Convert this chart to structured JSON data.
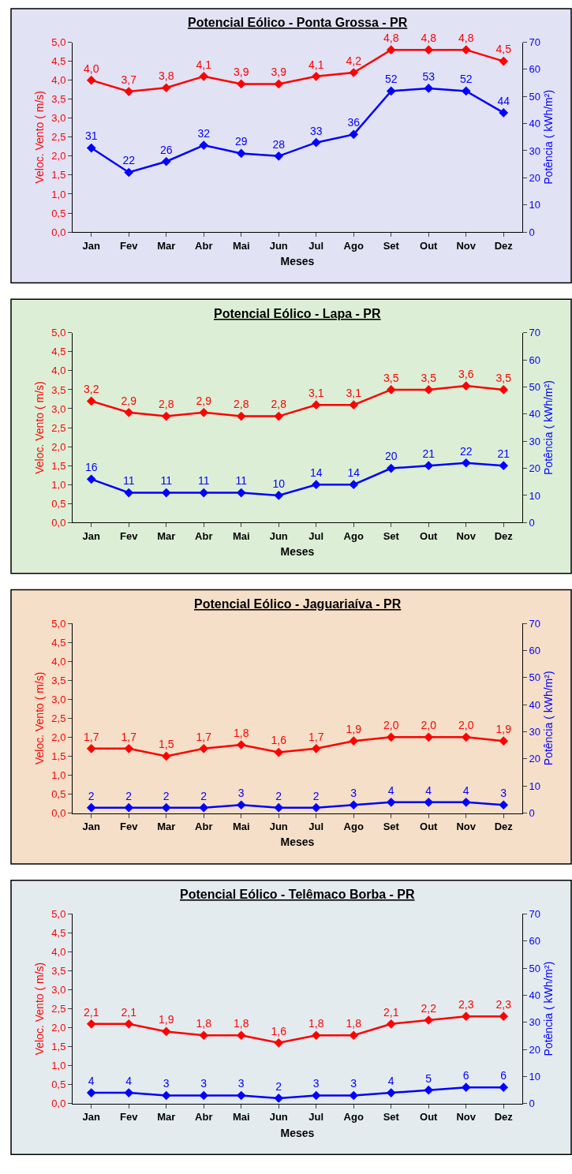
{
  "chart_data": [
    {
      "type": "line",
      "title": "Potencial Eólico - Ponta Grossa - PR",
      "xlabel": "Meses",
      "ylabel": "Veloc. Vento ( m/s)",
      "y2label": "Potência ( kWh/m²)",
      "categories": [
        "Jan",
        "Fev",
        "Mar",
        "Abr",
        "Mai",
        "Jun",
        "Jul",
        "Ago",
        "Set",
        "Out",
        "Nov",
        "Dez"
      ],
      "series": [
        {
          "color": "#ff0000",
          "values": [
            4.0,
            3.7,
            3.8,
            4.1,
            3.9,
            3.9,
            4.1,
            4.2,
            4.8,
            4.8,
            4.8,
            4.5
          ],
          "value_labels": [
            "4,0",
            "3,7",
            "3,8",
            "4,1",
            "3,9",
            "3,9",
            "4,1",
            "4,2",
            "4,8",
            "4,8",
            "4,8",
            "4,5"
          ]
        },
        {
          "color": "#0000ff",
          "axis": "y2",
          "values": [
            31,
            22,
            26,
            32,
            29,
            28,
            33,
            36,
            52,
            53,
            52,
            44
          ],
          "value_labels": [
            "31",
            "22",
            "26",
            "32",
            "29",
            "28",
            "33",
            "36",
            "52",
            "53",
            "52",
            "44"
          ]
        }
      ],
      "ylim": [
        0,
        5
      ],
      "yticks": [
        {
          "value": 0,
          "label": "0,0"
        },
        {
          "value": 0.5,
          "label": "0,5"
        },
        {
          "value": 1,
          "label": "1,0"
        },
        {
          "value": 1.5,
          "label": "1,5"
        },
        {
          "value": 2,
          "label": "2,0"
        },
        {
          "value": 2.5,
          "label": "2,5"
        },
        {
          "value": 3,
          "label": "3,0"
        },
        {
          "value": 3.5,
          "label": "3,5"
        },
        {
          "value": 4,
          "label": "4,0"
        },
        {
          "value": 4.5,
          "label": "4,5"
        },
        {
          "value": 5,
          "label": "5,0"
        }
      ],
      "y2lim": [
        0,
        70
      ],
      "y2ticks": [
        0,
        10,
        20,
        30,
        40,
        50,
        60,
        70
      ],
      "marker": "diamond",
      "line_style": "solid",
      "grid": false,
      "legend": false
    },
    {
      "type": "line",
      "title": "Potencial Eólico - Lapa - PR",
      "xlabel": "Meses",
      "ylabel": "Veloc. Vento ( m/s)",
      "y2label": "Potência ( kWh/m²)",
      "categories": [
        "Jan",
        "Fev",
        "Mar",
        "Abr",
        "Mai",
        "Jun",
        "Jul",
        "Ago",
        "Set",
        "Out",
        "Nov",
        "Dez"
      ],
      "series": [
        {
          "color": "#ff0000",
          "values": [
            3.2,
            2.9,
            2.8,
            2.9,
            2.8,
            2.8,
            3.1,
            3.1,
            3.5,
            3.5,
            3.6,
            3.5
          ],
          "value_labels": [
            "3,2",
            "2,9",
            "2,8",
            "2,9",
            "2,8",
            "2,8",
            "3,1",
            "3,1",
            "3,5",
            "3,5",
            "3,6",
            "3,5"
          ]
        },
        {
          "color": "#0000ff",
          "axis": "y2",
          "values": [
            16,
            11,
            11,
            11,
            11,
            10,
            14,
            14,
            20,
            21,
            22,
            21
          ],
          "value_labels": [
            "16",
            "11",
            "11",
            "11",
            "11",
            "10",
            "14",
            "14",
            "20",
            "21",
            "22",
            "21"
          ]
        }
      ],
      "ylim": [
        0,
        5
      ],
      "yticks": [
        {
          "value": 0,
          "label": "0,0"
        },
        {
          "value": 0.5,
          "label": "0,5"
        },
        {
          "value": 1,
          "label": "1,0"
        },
        {
          "value": 1.5,
          "label": "1,5"
        },
        {
          "value": 2,
          "label": "2,0"
        },
        {
          "value": 2.5,
          "label": "2,5"
        },
        {
          "value": 3,
          "label": "3,0"
        },
        {
          "value": 3.5,
          "label": "3,5"
        },
        {
          "value": 4,
          "label": "4,0"
        },
        {
          "value": 4.5,
          "label": "4,5"
        },
        {
          "value": 5,
          "label": "5,0"
        }
      ],
      "y2lim": [
        0,
        70
      ],
      "y2ticks": [
        0,
        10,
        20,
        30,
        40,
        50,
        60,
        70
      ],
      "marker": "diamond",
      "line_style": "solid",
      "grid": false,
      "legend": false
    },
    {
      "type": "line",
      "title": "Potencial Eólico - Jaguariaíva - PR",
      "xlabel": "Meses",
      "ylabel": "Veloc. Vento ( m/s)",
      "y2label": "Potência ( kWh/m²)",
      "categories": [
        "Jan",
        "Fev",
        "Mar",
        "Abr",
        "Mai",
        "Jun",
        "Jul",
        "Ago",
        "Set",
        "Out",
        "Nov",
        "Dez"
      ],
      "series": [
        {
          "color": "#ff0000",
          "values": [
            1.7,
            1.7,
            1.5,
            1.7,
            1.8,
            1.6,
            1.7,
            1.9,
            2.0,
            2.0,
            2.0,
            1.9
          ],
          "value_labels": [
            "1,7",
            "1,7",
            "1,5",
            "1,7",
            "1,8",
            "1,6",
            "1,7",
            "1,9",
            "2,0",
            "2,0",
            "2,0",
            "1,9"
          ]
        },
        {
          "color": "#0000ff",
          "axis": "y2",
          "values": [
            2,
            2,
            2,
            2,
            3,
            2,
            2,
            3,
            4,
            4,
            4,
            3
          ],
          "value_labels": [
            "2",
            "2",
            "2",
            "2",
            "3",
            "2",
            "2",
            "3",
            "4",
            "4",
            "4",
            "3"
          ]
        }
      ],
      "ylim": [
        0,
        5
      ],
      "yticks": [
        {
          "value": 0,
          "label": "0,0"
        },
        {
          "value": 0.5,
          "label": "0,5"
        },
        {
          "value": 1,
          "label": "1,0"
        },
        {
          "value": 1.5,
          "label": "1,5"
        },
        {
          "value": 2,
          "label": "2,0"
        },
        {
          "value": 2.5,
          "label": "2,5"
        },
        {
          "value": 3,
          "label": "3,0"
        },
        {
          "value": 3.5,
          "label": "3,5"
        },
        {
          "value": 4,
          "label": "4,0"
        },
        {
          "value": 4.5,
          "label": "4,5"
        },
        {
          "value": 5,
          "label": "5,0"
        }
      ],
      "y2lim": [
        0,
        70
      ],
      "y2ticks": [
        0,
        10,
        20,
        30,
        40,
        50,
        60,
        70
      ],
      "marker": "diamond",
      "line_style": "solid",
      "grid": false,
      "legend": false
    },
    {
      "type": "line",
      "title": "Potencial Eólico - Telêmaco Borba - PR",
      "xlabel": "Meses",
      "ylabel": "Veloc. Vento ( m/s)",
      "y2label": "Potência ( kWh/m²)",
      "categories": [
        "Jan",
        "Fev",
        "Mar",
        "Abr",
        "Mai",
        "Jun",
        "Jul",
        "Ago",
        "Set",
        "Out",
        "Nov",
        "Dez"
      ],
      "series": [
        {
          "color": "#ff0000",
          "values": [
            2.1,
            2.1,
            1.9,
            1.8,
            1.8,
            1.6,
            1.8,
            1.8,
            2.1,
            2.2,
            2.3,
            2.3
          ],
          "value_labels": [
            "2,1",
            "2,1",
            "1,9",
            "1,8",
            "1,8",
            "1,6",
            "1,8",
            "1,8",
            "2,1",
            "2,2",
            "2,3",
            "2,3"
          ]
        },
        {
          "color": "#0000ff",
          "axis": "y2",
          "values": [
            4,
            4,
            3,
            3,
            3,
            2,
            3,
            3,
            4,
            5,
            6,
            6
          ],
          "value_labels": [
            "4",
            "4",
            "3",
            "3",
            "3",
            "2",
            "3",
            "3",
            "4",
            "5",
            "6",
            "6"
          ]
        }
      ],
      "ylim": [
        0,
        5
      ],
      "yticks": [
        {
          "value": 0,
          "label": "0,0"
        },
        {
          "value": 0.5,
          "label": "0,5"
        },
        {
          "value": 1,
          "label": "1,0"
        },
        {
          "value": 1.5,
          "label": "1,5"
        },
        {
          "value": 2,
          "label": "2,0"
        },
        {
          "value": 2.5,
          "label": "2,5"
        },
        {
          "value": 3,
          "label": "3,0"
        },
        {
          "value": 3.5,
          "label": "3,5"
        },
        {
          "value": 4,
          "label": "4,0"
        },
        {
          "value": 4.5,
          "label": "4,5"
        },
        {
          "value": 5,
          "label": "5,0"
        }
      ],
      "y2lim": [
        0,
        70
      ],
      "y2ticks": [
        0,
        10,
        20,
        30,
        40,
        50,
        60,
        70
      ],
      "marker": "diamond",
      "line_style": "solid",
      "grid": false,
      "legend": false
    }
  ]
}
